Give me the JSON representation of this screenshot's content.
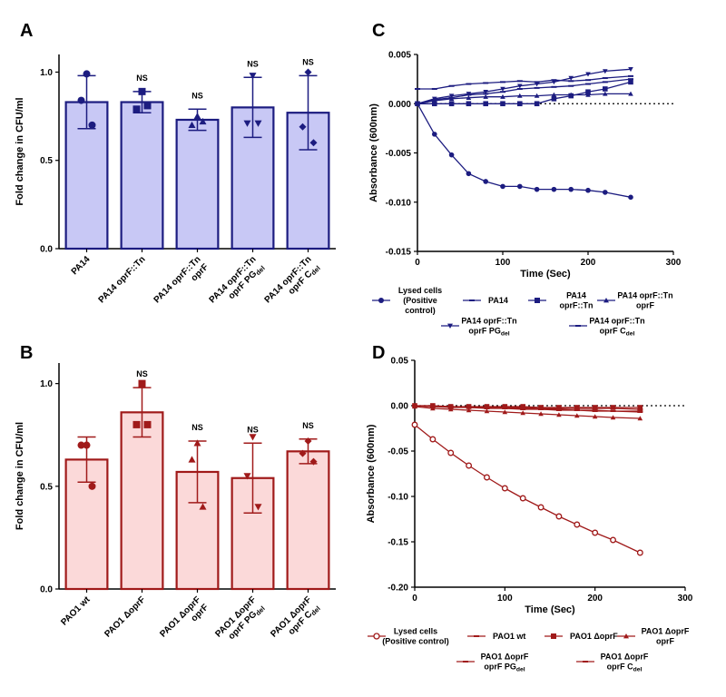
{
  "panels": {
    "A": "A",
    "B": "B",
    "C": "C",
    "D": "D"
  },
  "colors": {
    "blue": "#1c1c80",
    "blue_fill": "#c8c8f5",
    "red": "#a01a1a",
    "red_fill": "#fbd9d9"
  },
  "chart_data": [
    {
      "id": "A",
      "type": "bar",
      "title": "",
      "ylabel": "Fold change in CFU/ml",
      "ylim": [
        0,
        1.1
      ],
      "yticks": [
        "0.0",
        "0.5",
        "1.0"
      ],
      "categories": [
        [
          "PA14"
        ],
        [
          "PA14 oprF::Tn"
        ],
        [
          "PA14 oprF::Tn",
          "oprF"
        ],
        [
          "PA14 oprF::Tn",
          "oprF PGdel"
        ],
        [
          "PA14 oprF::Tn",
          "oprF Cdel"
        ]
      ],
      "values": [
        0.83,
        0.83,
        0.73,
        0.8,
        0.77
      ],
      "sd": [
        0.15,
        0.06,
        0.06,
        0.17,
        0.21
      ],
      "points": [
        [
          0.99,
          0.84,
          0.7
        ],
        [
          0.89,
          0.79,
          0.81
        ],
        [
          0.75,
          0.7,
          0.72
        ],
        [
          0.98,
          0.71,
          0.71
        ],
        [
          1.0,
          0.69,
          0.6
        ]
      ],
      "markers": [
        "circle",
        "square",
        "triangle",
        "tri-down",
        "diamond"
      ],
      "significance": [
        "",
        "NS",
        "NS",
        "NS",
        "NS"
      ]
    },
    {
      "id": "B",
      "type": "bar",
      "title": "",
      "ylabel": "Fold change in CFU/ml",
      "ylim": [
        0,
        1.1
      ],
      "yticks": [
        "0.0",
        "0.5",
        "1.0"
      ],
      "categories": [
        [
          "PAO1 wt"
        ],
        [
          "PAO1 ΔoprF"
        ],
        [
          "PAO1 ΔoprF",
          "oprF"
        ],
        [
          "PAO1 ΔoprF",
          "oprF PGdel"
        ],
        [
          "PAO1 ΔoprF",
          "oprF Cdel"
        ]
      ],
      "values": [
        0.63,
        0.86,
        0.57,
        0.54,
        0.67
      ],
      "sd": [
        0.11,
        0.12,
        0.15,
        0.17,
        0.06
      ],
      "points": [
        [
          0.7,
          0.7,
          0.5
        ],
        [
          1.0,
          0.8,
          0.8
        ],
        [
          0.71,
          0.63,
          0.4
        ],
        [
          0.74,
          0.55,
          0.4
        ],
        [
          0.72,
          0.66,
          0.62
        ]
      ],
      "markers": [
        "circle",
        "square",
        "triangle",
        "tri-down",
        "diamond"
      ],
      "significance": [
        "",
        "NS",
        "NS",
        "NS",
        "NS"
      ]
    },
    {
      "id": "C",
      "type": "line",
      "title": "",
      "xlabel": "Time (Sec)",
      "ylabel": "Absorbance (600nm)",
      "xlim": [
        0,
        300
      ],
      "ylim": [
        -0.015,
        0.005
      ],
      "xticks": [
        "0",
        "100",
        "200",
        "300"
      ],
      "yticks": [
        "0.005",
        "0.000",
        "-0.005",
        "-0.010",
        "-0.015"
      ],
      "legend": [
        {
          "name": "Lysed cells",
          "name2": "(Positive",
          "name3": "control)"
        },
        {
          "name": "PA14"
        },
        {
          "name": "PA14",
          "name2": "oprF::Tn"
        },
        {
          "name": "PA14 oprF::Tn",
          "name2": "oprF"
        },
        {
          "name": "PA14 oprF::Tn",
          "name2": "oprF PGdel"
        },
        {
          "name": "PA14 oprF::Tn",
          "name2": "oprF Cdel"
        }
      ],
      "x": [
        0,
        20,
        40,
        60,
        80,
        100,
        120,
        140,
        160,
        180,
        200,
        220,
        250
      ],
      "series": [
        {
          "name": "Lysed cells (Positive control)",
          "marker": "circle",
          "values": [
            0.0,
            -0.0031,
            -0.0052,
            -0.0071,
            -0.0079,
            -0.0084,
            -0.0084,
            -0.0087,
            -0.0087,
            -0.0087,
            -0.0088,
            -0.009,
            -0.0095
          ]
        },
        {
          "name": "PA14",
          "marker": "dash",
          "values": [
            0.0015,
            0.0015,
            0.0018,
            0.002,
            0.0021,
            0.0022,
            0.0023,
            0.0022,
            0.0024,
            0.0023,
            0.0024,
            0.0026,
            0.0028
          ]
        },
        {
          "name": "PA14 oprF::Tn",
          "marker": "square",
          "values": [
            0.0,
            0.0,
            0.0,
            0.0,
            0.0,
            0.0,
            0.0,
            0.0,
            0.0005,
            0.0008,
            0.0012,
            0.0015,
            0.0022
          ]
        },
        {
          "name": "PA14 oprF::Tn oprF",
          "marker": "triangle",
          "values": [
            0.0,
            0.0003,
            0.0005,
            0.0006,
            0.0007,
            0.0007,
            0.0008,
            0.0008,
            0.0009,
            0.0009,
            0.0009,
            0.001,
            0.001
          ]
        },
        {
          "name": "PA14 oprF::Tn oprF PGdel",
          "marker": "tri-down",
          "values": [
            0.0,
            0.0005,
            0.0008,
            0.001,
            0.0012,
            0.0015,
            0.0018,
            0.002,
            0.0022,
            0.0026,
            0.003,
            0.0033,
            0.0035
          ]
        },
        {
          "name": "PA14 oprF::Tn oprF Cdel",
          "marker": "dash",
          "values": [
            0.0,
            0.0004,
            0.0006,
            0.0009,
            0.001,
            0.0012,
            0.0015,
            0.0016,
            0.0017,
            0.0018,
            0.002,
            0.0022,
            0.0025
          ]
        }
      ]
    },
    {
      "id": "D",
      "type": "line",
      "title": "",
      "xlabel": "Time (Sec)",
      "ylabel": "Absorbance (600nm)",
      "xlim": [
        0,
        300
      ],
      "ylim": [
        -0.2,
        0.05
      ],
      "xticks": [
        "0",
        "100",
        "200",
        "300"
      ],
      "yticks": [
        "0.05",
        "0.00",
        "-0.05",
        "-0.10",
        "-0.15",
        "-0.20"
      ],
      "legend": [
        {
          "name": "Lysed cells",
          "name2": "(Positive control)"
        },
        {
          "name": "PAO1 wt"
        },
        {
          "name": "PAO1 ΔoprF"
        },
        {
          "name": "PAO1 ΔoprF",
          "name2": "oprF"
        },
        {
          "name": "PAO1 ΔoprF",
          "name2": "oprF PGdel"
        },
        {
          "name": "PAO1 ΔoprF",
          "name2": "oprF Cdel"
        }
      ],
      "x": [
        0,
        20,
        40,
        60,
        80,
        100,
        120,
        140,
        160,
        180,
        200,
        220,
        250
      ],
      "series": [
        {
          "name": "Lysed cells (Positive control)",
          "marker": "open-circle",
          "values": [
            -0.021,
            -0.037,
            -0.052,
            -0.066,
            -0.079,
            -0.091,
            -0.102,
            -0.112,
            -0.122,
            -0.131,
            -0.14,
            -0.148,
            -0.162
          ]
        },
        {
          "name": "PAO1 wt",
          "marker": "dash",
          "values": [
            0.0,
            -0.001,
            -0.001,
            -0.002,
            -0.002,
            -0.002,
            -0.002,
            -0.003,
            -0.003,
            -0.003,
            -0.003,
            -0.003,
            -0.004
          ]
        },
        {
          "name": "PAO1 ΔoprF",
          "marker": "square",
          "values": [
            0.0,
            0.0,
            -0.001,
            -0.001,
            -0.001,
            -0.001,
            -0.001,
            -0.002,
            -0.002,
            -0.002,
            -0.002,
            -0.002,
            -0.002
          ]
        },
        {
          "name": "PAO1 ΔoprF oprF",
          "marker": "triangle",
          "values": [
            -0.001,
            -0.003,
            -0.004,
            -0.005,
            -0.006,
            -0.007,
            -0.008,
            -0.009,
            -0.01,
            -0.011,
            -0.012,
            -0.013,
            -0.014
          ]
        },
        {
          "name": "PAO1 ΔoprF oprF PGdel",
          "marker": "dash",
          "values": [
            0.0,
            -0.001,
            -0.002,
            -0.002,
            -0.003,
            -0.003,
            -0.004,
            -0.004,
            -0.005,
            -0.005,
            -0.006,
            -0.006,
            -0.007
          ]
        },
        {
          "name": "PAO1 ΔoprF oprF Cdel",
          "marker": "dash",
          "values": [
            0.0,
            -0.001,
            -0.001,
            -0.002,
            -0.002,
            -0.003,
            -0.003,
            -0.004,
            -0.004,
            -0.005,
            -0.005,
            -0.006,
            -0.006
          ]
        }
      ]
    }
  ]
}
